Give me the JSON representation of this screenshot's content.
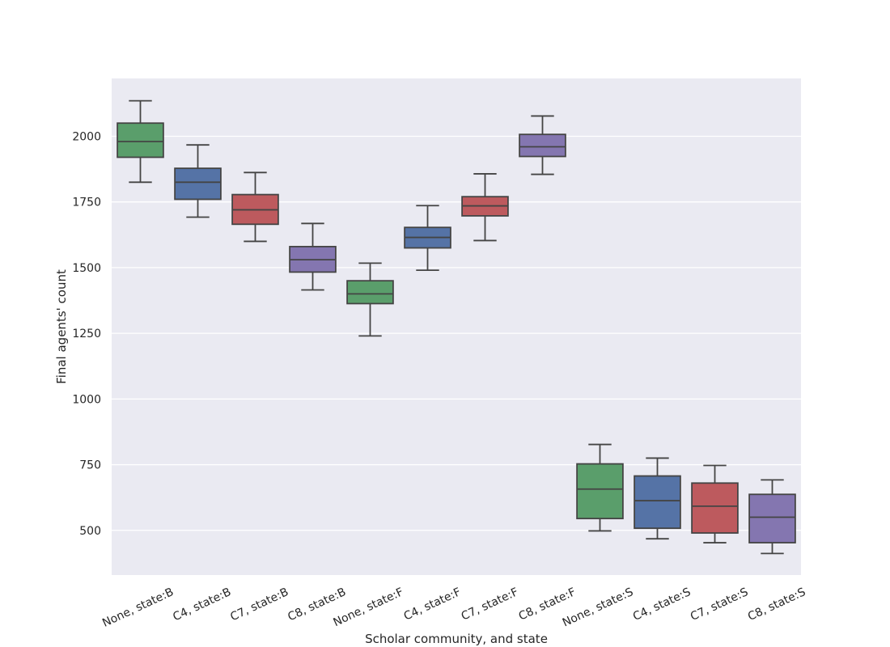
{
  "chart_data": {
    "type": "box",
    "xlabel": "Scholar community, and state",
    "ylabel": "Final agents' count",
    "ylim": [
      330,
      2220
    ],
    "yticks": [
      500,
      750,
      1000,
      1250,
      1500,
      1750,
      2000
    ],
    "grid": true,
    "legend": "none",
    "colors": {
      "None": "#5a9e6b",
      "C4": "#5573a6",
      "C7": "#bd5a5e",
      "C8": "#8476b0",
      "background": "#eaeaf2",
      "line": "#444444"
    },
    "boxes": [
      {
        "label": "None, state:B",
        "community": "None",
        "whisker_low": 1825,
        "q1": 1920,
        "median": 1980,
        "q3": 2050,
        "whisker_high": 2135
      },
      {
        "label": "C4, state:B",
        "community": "C4",
        "whisker_low": 1692,
        "q1": 1760,
        "median": 1825,
        "q3": 1878,
        "whisker_high": 1967
      },
      {
        "label": "C7, state:B",
        "community": "C7",
        "whisker_low": 1600,
        "q1": 1665,
        "median": 1720,
        "q3": 1778,
        "whisker_high": 1862
      },
      {
        "label": "C8, state:B",
        "community": "C8",
        "whisker_low": 1415,
        "q1": 1483,
        "median": 1530,
        "q3": 1580,
        "whisker_high": 1668
      },
      {
        "label": "None, state:F",
        "community": "None",
        "whisker_low": 1240,
        "q1": 1363,
        "median": 1400,
        "q3": 1450,
        "whisker_high": 1517
      },
      {
        "label": "C4, state:F",
        "community": "C4",
        "whisker_low": 1490,
        "q1": 1575,
        "median": 1615,
        "q3": 1653,
        "whisker_high": 1736
      },
      {
        "label": "C7, state:F",
        "community": "C7",
        "whisker_low": 1603,
        "q1": 1697,
        "median": 1735,
        "q3": 1770,
        "whisker_high": 1857
      },
      {
        "label": "C8, state:F",
        "community": "C8",
        "whisker_low": 1855,
        "q1": 1923,
        "median": 1960,
        "q3": 2007,
        "whisker_high": 2077
      },
      {
        "label": "None, state:S",
        "community": "None",
        "whisker_low": 498,
        "q1": 545,
        "median": 657,
        "q3": 753,
        "whisker_high": 827
      },
      {
        "label": "C4, state:S",
        "community": "C4",
        "whisker_low": 468,
        "q1": 508,
        "median": 613,
        "q3": 707,
        "whisker_high": 775
      },
      {
        "label": "C7, state:S",
        "community": "C7",
        "whisker_low": 453,
        "q1": 490,
        "median": 592,
        "q3": 680,
        "whisker_high": 747
      },
      {
        "label": "C8, state:S",
        "community": "C8",
        "whisker_low": 412,
        "q1": 453,
        "median": 550,
        "q3": 637,
        "whisker_high": 692
      }
    ]
  }
}
